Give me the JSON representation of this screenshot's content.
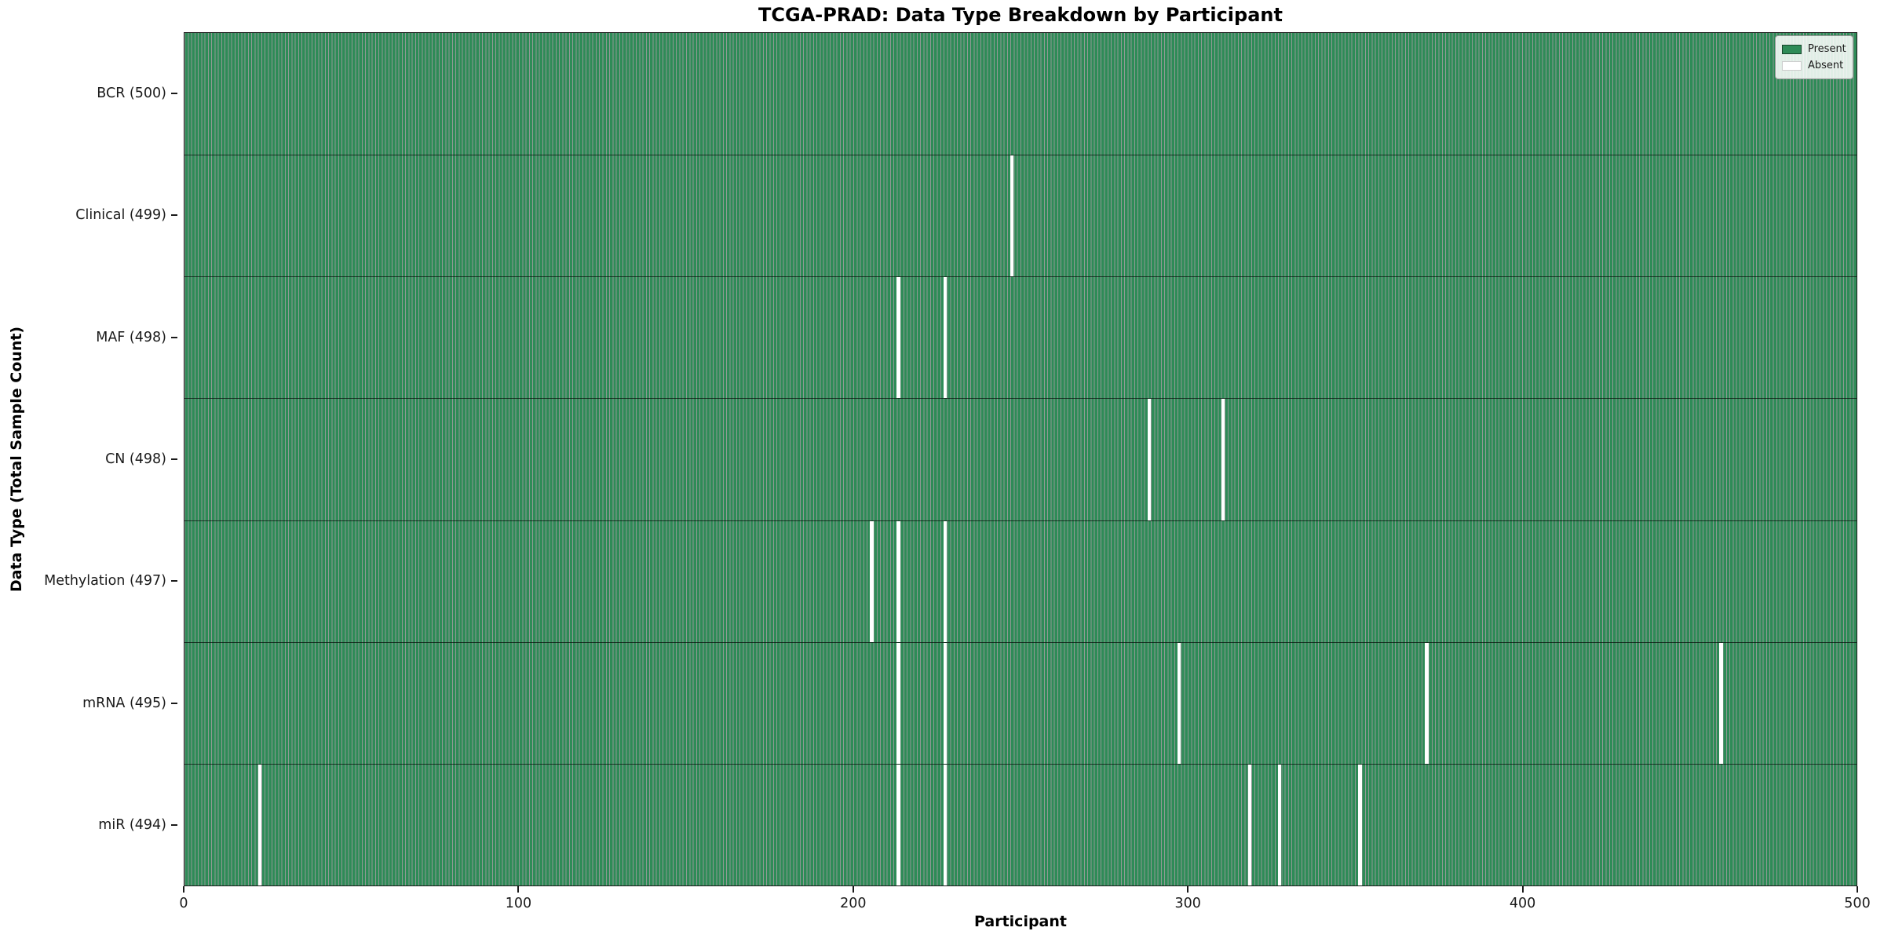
{
  "title": "TCGA-PRAD: Data Type Breakdown by Participant",
  "x_axis_label": "Participant",
  "y_axis_label": "Data Type (Total Sample Count)",
  "legend": {
    "present_label": "Present",
    "absent_label": "Absent"
  },
  "colors": {
    "present": "#2e8b57",
    "absent": "#ffffff",
    "cell_edge": "rgba(10,30,20,0.45)",
    "row_divider": "rgba(0,0,0,0.65)"
  },
  "chart_data": {
    "type": "heatmap",
    "title": "TCGA-PRAD: Data Type Breakdown by Participant",
    "xlabel": "Participant",
    "ylabel": "Data Type (Total Sample Count)",
    "legend_entries": [
      "Present",
      "Absent"
    ],
    "legend_position": "upper right",
    "grid": false,
    "x_range": [
      0,
      500
    ],
    "x_ticks": [
      0,
      100,
      200,
      300,
      400,
      500
    ],
    "n_participants": 500,
    "rows": [
      {
        "label": "BCR (500)",
        "name": "BCR",
        "total": 500,
        "absent_participants": []
      },
      {
        "label": "Clinical (499)",
        "name": "Clinical",
        "total": 499,
        "absent_participants": [
          247
        ]
      },
      {
        "label": "MAF (498)",
        "name": "MAF",
        "total": 498,
        "absent_participants": [
          213,
          227
        ]
      },
      {
        "label": "CN (498)",
        "name": "CN",
        "total": 498,
        "absent_participants": [
          288,
          310
        ]
      },
      {
        "label": "Methylation (497)",
        "name": "Methylation",
        "total": 497,
        "absent_participants": [
          205,
          213,
          227
        ]
      },
      {
        "label": "mRNA (495)",
        "name": "mRNA",
        "total": 495,
        "absent_participants": [
          213,
          227,
          297,
          371,
          459
        ]
      },
      {
        "label": "miR (494)",
        "name": "miR",
        "total": 494,
        "absent_participants": [
          22,
          213,
          227,
          318,
          327,
          351
        ]
      }
    ]
  }
}
